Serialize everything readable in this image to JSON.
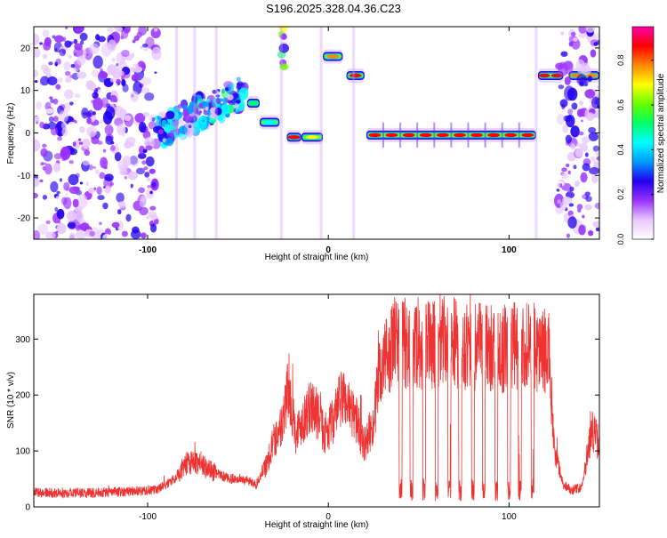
{
  "page_title": "S196.2025.328.04.36.C23",
  "chart_data": [
    {
      "type": "heatmap",
      "title": "S196.2025.328.04.36.C23",
      "xlabel": "Height of straight line (km)",
      "ylabel": "Frequency (Hz)",
      "xlim": [
        -163,
        150
      ],
      "ylim": [
        -25,
        25
      ],
      "xticks": [
        -100,
        0,
        100
      ],
      "xtick_labels": [
        "-100",
        "0",
        "100"
      ],
      "yticks": [
        -20,
        -10,
        0,
        10,
        20
      ],
      "ytick_labels": [
        "-20",
        "-10",
        "0",
        "10",
        "20"
      ],
      "colorbar": {
        "label": "Normalized spectral amplitude",
        "range": [
          0,
          0.95
        ],
        "ticks": [
          0.0,
          0.2,
          0.4,
          0.6,
          0.8
        ],
        "tick_labels": [
          "0.0",
          "0.2",
          "0.4",
          "0.6",
          "0.8"
        ],
        "colors": [
          "#ffffff",
          "#e8c8ff",
          "#9933ff",
          "#2200ee",
          "#0099ff",
          "#00ffff",
          "#00ff66",
          "#66ff00",
          "#ffff00",
          "#ff8800",
          "#ff0000",
          "#ff00aa"
        ]
      },
      "features": [
        {
          "name": "noise scatter",
          "x_range": [
            -163,
            -95
          ],
          "freq_range": [
            -25,
            25
          ],
          "amplitude": 0.2
        },
        {
          "name": "rising trend",
          "x_range": [
            -95,
            -45
          ],
          "freq_range": [
            0,
            10
          ],
          "amplitude": 0.35
        },
        {
          "name": "tone",
          "x_range": [
            -45,
            -38
          ],
          "freq": 7,
          "amplitude": 0.55
        },
        {
          "name": "tone",
          "x_range": [
            -38,
            -27
          ],
          "freq": 2.5,
          "amplitude": 0.45
        },
        {
          "name": "vertical burst",
          "x_range": [
            -26,
            -24
          ],
          "freq_range": [
            15,
            25
          ],
          "amplitude": 0.55
        },
        {
          "name": "tone",
          "x_range": [
            -23,
            -15
          ],
          "freq": -1,
          "amplitude": 0.85
        },
        {
          "name": "tone",
          "x_range": [
            -15,
            -3
          ],
          "freq": -1,
          "amplitude": 0.7
        },
        {
          "name": "tone",
          "x_range": [
            -3,
            8
          ],
          "freq": 18,
          "amplitude": 0.8
        },
        {
          "name": "tone",
          "x_range": [
            10,
            20
          ],
          "freq": 13.5,
          "amplitude": 0.85
        },
        {
          "name": "tone",
          "x_range": [
            21,
            115
          ],
          "freq": -0.5,
          "amplitude": 0.9
        },
        {
          "name": "tone",
          "x_range": [
            116,
            130
          ],
          "freq": 13.5,
          "amplitude": 0.85
        },
        {
          "name": "tone",
          "x_range": [
            133,
            150
          ],
          "freq": 13.5,
          "amplitude": 0.8
        },
        {
          "name": "noise scatter",
          "x_range": [
            127,
            150
          ],
          "freq_range": [
            -25,
            25
          ],
          "amplitude": 0.2
        }
      ]
    },
    {
      "type": "line",
      "xlabel": "Height of straight line (km)",
      "ylabel": "SNR (10 * v/v)",
      "xlim": [
        -163,
        150
      ],
      "ylim": [
        0,
        380
      ],
      "xticks": [
        -100,
        0,
        100
      ],
      "xtick_labels": [
        "-100",
        "0",
        "100"
      ],
      "yticks": [
        0,
        100,
        200,
        300
      ],
      "ytick_labels": [
        "0",
        "100",
        "200",
        "300"
      ],
      "series": [
        {
          "name": "SNR",
          "color": "#ee3333",
          "x": [
            -163,
            -150,
            -130,
            -110,
            -95,
            -85,
            -78,
            -72,
            -68,
            -62,
            -55,
            -48,
            -40,
            -35,
            -30,
            -25,
            -22,
            -18,
            -12,
            -8,
            -2,
            2,
            8,
            15,
            20,
            25,
            28,
            32,
            38,
            45,
            55,
            65,
            75,
            85,
            95,
            105,
            115,
            122,
            125,
            130,
            135,
            140,
            146,
            150
          ],
          "values": [
            25,
            25,
            25,
            28,
            30,
            50,
            80,
            80,
            70,
            60,
            50,
            50,
            40,
            70,
            120,
            150,
            220,
            130,
            170,
            180,
            130,
            150,
            200,
            160,
            110,
            150,
            230,
            270,
            300,
            290,
            290,
            295,
            290,
            285,
            280,
            290,
            285,
            275,
            100,
            40,
            30,
            35,
            140,
            110
          ]
        }
      ],
      "dropouts": [
        {
          "x": 40
        },
        {
          "x": 46
        },
        {
          "x": 53
        },
        {
          "x": 60
        },
        {
          "x": 67
        },
        {
          "x": 73
        },
        {
          "x": 80
        },
        {
          "x": 86
        },
        {
          "x": 93
        },
        {
          "x": 100
        },
        {
          "x": 106
        },
        {
          "x": 113
        }
      ]
    }
  ]
}
